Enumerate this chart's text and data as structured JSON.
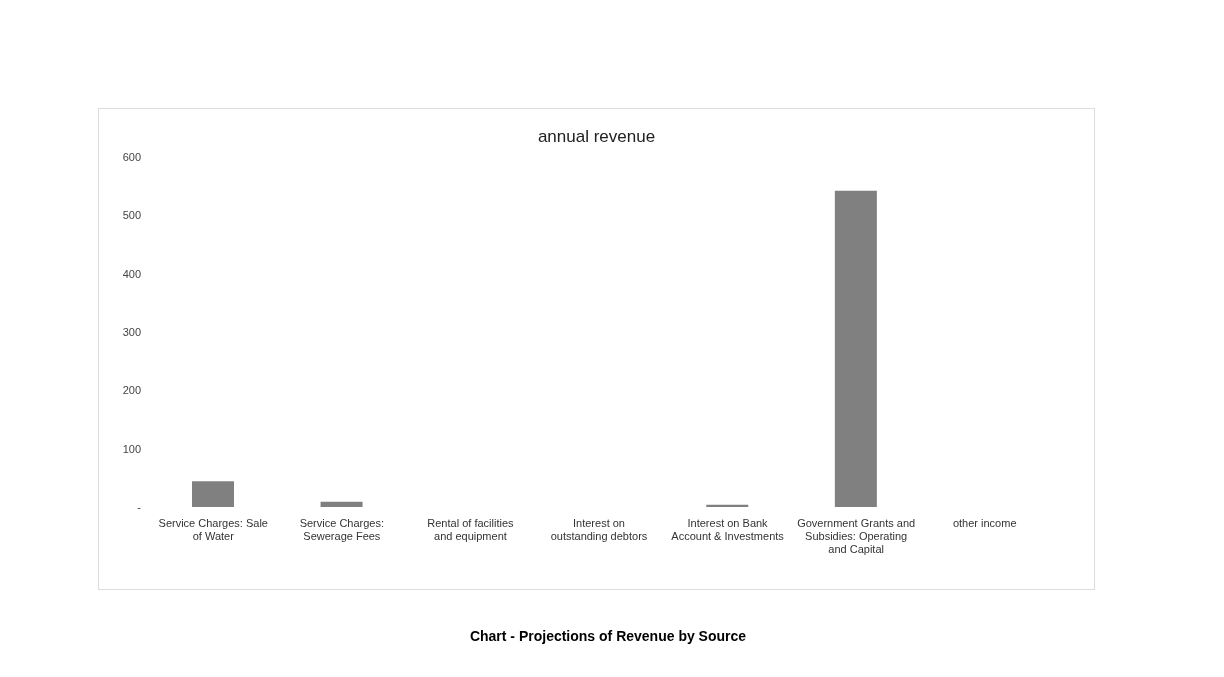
{
  "chart_data": {
    "type": "bar",
    "title": "annual revenue",
    "categories": [
      "Service Charges: Sale of Water",
      "Service Charges: Sewerage Fees",
      "Rental of facilities and equipment",
      "Interest on outstanding debtors",
      "Interest on Bank Account & Investments",
      "Government Grants and Subsidies: Operating and Capital",
      "other income"
    ],
    "values": [
      44,
      9,
      0,
      0,
      4,
      542,
      0
    ],
    "color": "#808080",
    "ylim": [
      0,
      600
    ],
    "yticks": [
      {
        "value": 0,
        "label": "-"
      },
      100,
      200,
      300,
      400,
      500,
      600
    ],
    "annotations": [
      "Chart - Projections of Revenue by Source"
    ]
  }
}
